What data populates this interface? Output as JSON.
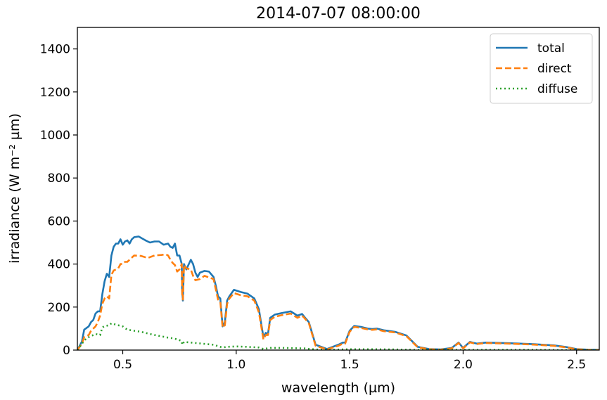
{
  "chart_data": {
    "type": "line",
    "title": "2014-07-07 08:00:00",
    "xlabel": "wavelength (µm)",
    "ylabel": "irradiance (W m⁻² µm)",
    "xlim": [
      0.3,
      2.6
    ],
    "ylim": [
      0,
      1500
    ],
    "xticks": [
      0.5,
      1.0,
      1.5,
      2.0,
      2.5
    ],
    "xtick_labels": [
      "0.5",
      "1.0",
      "1.5",
      "2.0",
      "2.5"
    ],
    "yticks": [
      0,
      200,
      400,
      600,
      800,
      1000,
      1200,
      1400
    ],
    "ytick_labels": [
      "0",
      "200",
      "400",
      "600",
      "800",
      "1000",
      "1200",
      "1400"
    ],
    "grid": false,
    "legend_position": "top-right",
    "series": [
      {
        "name": "total",
        "color": "#1f77b4",
        "style": "solid",
        "points": [
          [
            0.3,
            0
          ],
          [
            0.32,
            40
          ],
          [
            0.33,
            95
          ],
          [
            0.35,
            110
          ],
          [
            0.36,
            130
          ],
          [
            0.37,
            140
          ],
          [
            0.38,
            170
          ],
          [
            0.39,
            180
          ],
          [
            0.4,
            180
          ],
          [
            0.41,
            260
          ],
          [
            0.42,
            320
          ],
          [
            0.43,
            355
          ],
          [
            0.44,
            340
          ],
          [
            0.45,
            440
          ],
          [
            0.46,
            480
          ],
          [
            0.47,
            495
          ],
          [
            0.48,
            495
          ],
          [
            0.49,
            515
          ],
          [
            0.5,
            490
          ],
          [
            0.51,
            505
          ],
          [
            0.52,
            510
          ],
          [
            0.53,
            495
          ],
          [
            0.54,
            515
          ],
          [
            0.55,
            525
          ],
          [
            0.57,
            528
          ],
          [
            0.6,
            510
          ],
          [
            0.62,
            500
          ],
          [
            0.64,
            505
          ],
          [
            0.66,
            505
          ],
          [
            0.68,
            490
          ],
          [
            0.7,
            495
          ],
          [
            0.71,
            480
          ],
          [
            0.72,
            475
          ],
          [
            0.73,
            495
          ],
          [
            0.74,
            440
          ],
          [
            0.75,
            440
          ],
          [
            0.76,
            400
          ],
          [
            0.762,
            280
          ],
          [
            0.765,
            230
          ],
          [
            0.77,
            400
          ],
          [
            0.78,
            375
          ],
          [
            0.8,
            420
          ],
          [
            0.81,
            400
          ],
          [
            0.82,
            360
          ],
          [
            0.83,
            340
          ],
          [
            0.84,
            360
          ],
          [
            0.86,
            368
          ],
          [
            0.88,
            365
          ],
          [
            0.9,
            340
          ],
          [
            0.91,
            300
          ],
          [
            0.92,
            250
          ],
          [
            0.93,
            240
          ],
          [
            0.94,
            110
          ],
          [
            0.95,
            130
          ],
          [
            0.96,
            230
          ],
          [
            0.97,
            250
          ],
          [
            0.99,
            280
          ],
          [
            1.02,
            270
          ],
          [
            1.05,
            262
          ],
          [
            1.08,
            240
          ],
          [
            1.1,
            190
          ],
          [
            1.12,
            60
          ],
          [
            1.13,
            80
          ],
          [
            1.14,
            75
          ],
          [
            1.15,
            150
          ],
          [
            1.17,
            165
          ],
          [
            1.2,
            172
          ],
          [
            1.24,
            180
          ],
          [
            1.27,
            160
          ],
          [
            1.29,
            168
          ],
          [
            1.3,
            155
          ],
          [
            1.32,
            130
          ],
          [
            1.35,
            25
          ],
          [
            1.4,
            5
          ],
          [
            1.45,
            25
          ],
          [
            1.47,
            35
          ],
          [
            1.48,
            35
          ],
          [
            1.5,
            90
          ],
          [
            1.52,
            112
          ],
          [
            1.55,
            108
          ],
          [
            1.58,
            100
          ],
          [
            1.6,
            98
          ],
          [
            1.62,
            100
          ],
          [
            1.65,
            92
          ],
          [
            1.7,
            85
          ],
          [
            1.75,
            68
          ],
          [
            1.8,
            15
          ],
          [
            1.85,
            5
          ],
          [
            1.9,
            3
          ],
          [
            1.95,
            10
          ],
          [
            1.98,
            35
          ],
          [
            2.0,
            10
          ],
          [
            2.03,
            38
          ],
          [
            2.06,
            30
          ],
          [
            2.1,
            35
          ],
          [
            2.2,
            32
          ],
          [
            2.3,
            28
          ],
          [
            2.4,
            22
          ],
          [
            2.45,
            15
          ],
          [
            2.5,
            5
          ],
          [
            2.55,
            2
          ],
          [
            2.6,
            1
          ]
        ]
      },
      {
        "name": "direct",
        "color": "#ff7f0e",
        "style": "dashed",
        "points": [
          [
            0.3,
            0
          ],
          [
            0.32,
            30
          ],
          [
            0.33,
            60
          ],
          [
            0.35,
            70
          ],
          [
            0.36,
            90
          ],
          [
            0.37,
            100
          ],
          [
            0.38,
            110
          ],
          [
            0.39,
            130
          ],
          [
            0.4,
            160
          ],
          [
            0.41,
            215
          ],
          [
            0.42,
            240
          ],
          [
            0.43,
            250
          ],
          [
            0.44,
            240
          ],
          [
            0.45,
            350
          ],
          [
            0.46,
            370
          ],
          [
            0.47,
            375
          ],
          [
            0.48,
            380
          ],
          [
            0.49,
            400
          ],
          [
            0.5,
            400
          ],
          [
            0.51,
            410
          ],
          [
            0.52,
            410
          ],
          [
            0.53,
            420
          ],
          [
            0.55,
            440
          ],
          [
            0.58,
            438
          ],
          [
            0.61,
            428
          ],
          [
            0.64,
            440
          ],
          [
            0.67,
            442
          ],
          [
            0.69,
            445
          ],
          [
            0.7,
            440
          ],
          [
            0.71,
            420
          ],
          [
            0.72,
            405
          ],
          [
            0.73,
            395
          ],
          [
            0.74,
            365
          ],
          [
            0.75,
            375
          ],
          [
            0.76,
            400
          ],
          [
            0.762,
            260
          ],
          [
            0.765,
            235
          ],
          [
            0.77,
            395
          ],
          [
            0.78,
            380
          ],
          [
            0.8,
            375
          ],
          [
            0.81,
            345
          ],
          [
            0.82,
            325
          ],
          [
            0.84,
            330
          ],
          [
            0.86,
            345
          ],
          [
            0.88,
            338
          ],
          [
            0.9,
            330
          ],
          [
            0.92,
            235
          ],
          [
            0.93,
            225
          ],
          [
            0.94,
            105
          ],
          [
            0.95,
            115
          ],
          [
            0.96,
            215
          ],
          [
            0.97,
            240
          ],
          [
            0.99,
            265
          ],
          [
            1.02,
            255
          ],
          [
            1.05,
            250
          ],
          [
            1.08,
            230
          ],
          [
            1.1,
            175
          ],
          [
            1.12,
            50
          ],
          [
            1.13,
            70
          ],
          [
            1.14,
            70
          ],
          [
            1.15,
            140
          ],
          [
            1.17,
            155
          ],
          [
            1.2,
            162
          ],
          [
            1.24,
            170
          ],
          [
            1.27,
            150
          ],
          [
            1.29,
            160
          ],
          [
            1.3,
            150
          ],
          [
            1.32,
            125
          ],
          [
            1.35,
            20
          ],
          [
            1.4,
            3
          ],
          [
            1.45,
            20
          ],
          [
            1.47,
            30
          ],
          [
            1.48,
            30
          ],
          [
            1.5,
            85
          ],
          [
            1.52,
            108
          ],
          [
            1.55,
            103
          ],
          [
            1.58,
            96
          ],
          [
            1.6,
            94
          ],
          [
            1.62,
            96
          ],
          [
            1.65,
            88
          ],
          [
            1.7,
            82
          ],
          [
            1.75,
            65
          ],
          [
            1.8,
            13
          ],
          [
            1.85,
            4
          ],
          [
            1.9,
            2
          ],
          [
            1.95,
            8
          ],
          [
            1.98,
            33
          ],
          [
            2.0,
            8
          ],
          [
            2.03,
            36
          ],
          [
            2.06,
            28
          ],
          [
            2.1,
            33
          ],
          [
            2.2,
            30
          ],
          [
            2.3,
            26
          ],
          [
            2.4,
            20
          ],
          [
            2.45,
            13
          ],
          [
            2.5,
            4
          ],
          [
            2.55,
            1
          ],
          [
            2.6,
            0
          ]
        ]
      },
      {
        "name": "diffuse",
        "color": "#2ca02c",
        "style": "dotted",
        "points": [
          [
            0.3,
            0
          ],
          [
            0.32,
            30
          ],
          [
            0.34,
            55
          ],
          [
            0.36,
            65
          ],
          [
            0.38,
            75
          ],
          [
            0.4,
            70
          ],
          [
            0.41,
            105
          ],
          [
            0.42,
            112
          ],
          [
            0.44,
            115
          ],
          [
            0.45,
            125
          ],
          [
            0.47,
            118
          ],
          [
            0.5,
            110
          ],
          [
            0.52,
            95
          ],
          [
            0.55,
            90
          ],
          [
            0.58,
            85
          ],
          [
            0.6,
            80
          ],
          [
            0.62,
            75
          ],
          [
            0.65,
            68
          ],
          [
            0.68,
            62
          ],
          [
            0.7,
            58
          ],
          [
            0.72,
            55
          ],
          [
            0.74,
            50
          ],
          [
            0.76,
            42
          ],
          [
            0.762,
            25
          ],
          [
            0.77,
            38
          ],
          [
            0.8,
            35
          ],
          [
            0.85,
            30
          ],
          [
            0.9,
            25
          ],
          [
            0.92,
            18
          ],
          [
            0.94,
            12
          ],
          [
            0.96,
            15
          ],
          [
            1.0,
            17
          ],
          [
            1.05,
            15
          ],
          [
            1.1,
            12
          ],
          [
            1.12,
            5
          ],
          [
            1.15,
            10
          ],
          [
            1.2,
            10
          ],
          [
            1.3,
            8
          ],
          [
            1.35,
            3
          ],
          [
            1.4,
            1
          ],
          [
            1.5,
            4
          ],
          [
            1.6,
            4
          ],
          [
            1.7,
            3
          ],
          [
            1.8,
            1
          ],
          [
            1.9,
            1
          ],
          [
            2.0,
            1
          ],
          [
            2.1,
            1
          ],
          [
            2.3,
            1
          ],
          [
            2.5,
            0
          ],
          [
            2.6,
            0
          ]
        ]
      }
    ]
  }
}
